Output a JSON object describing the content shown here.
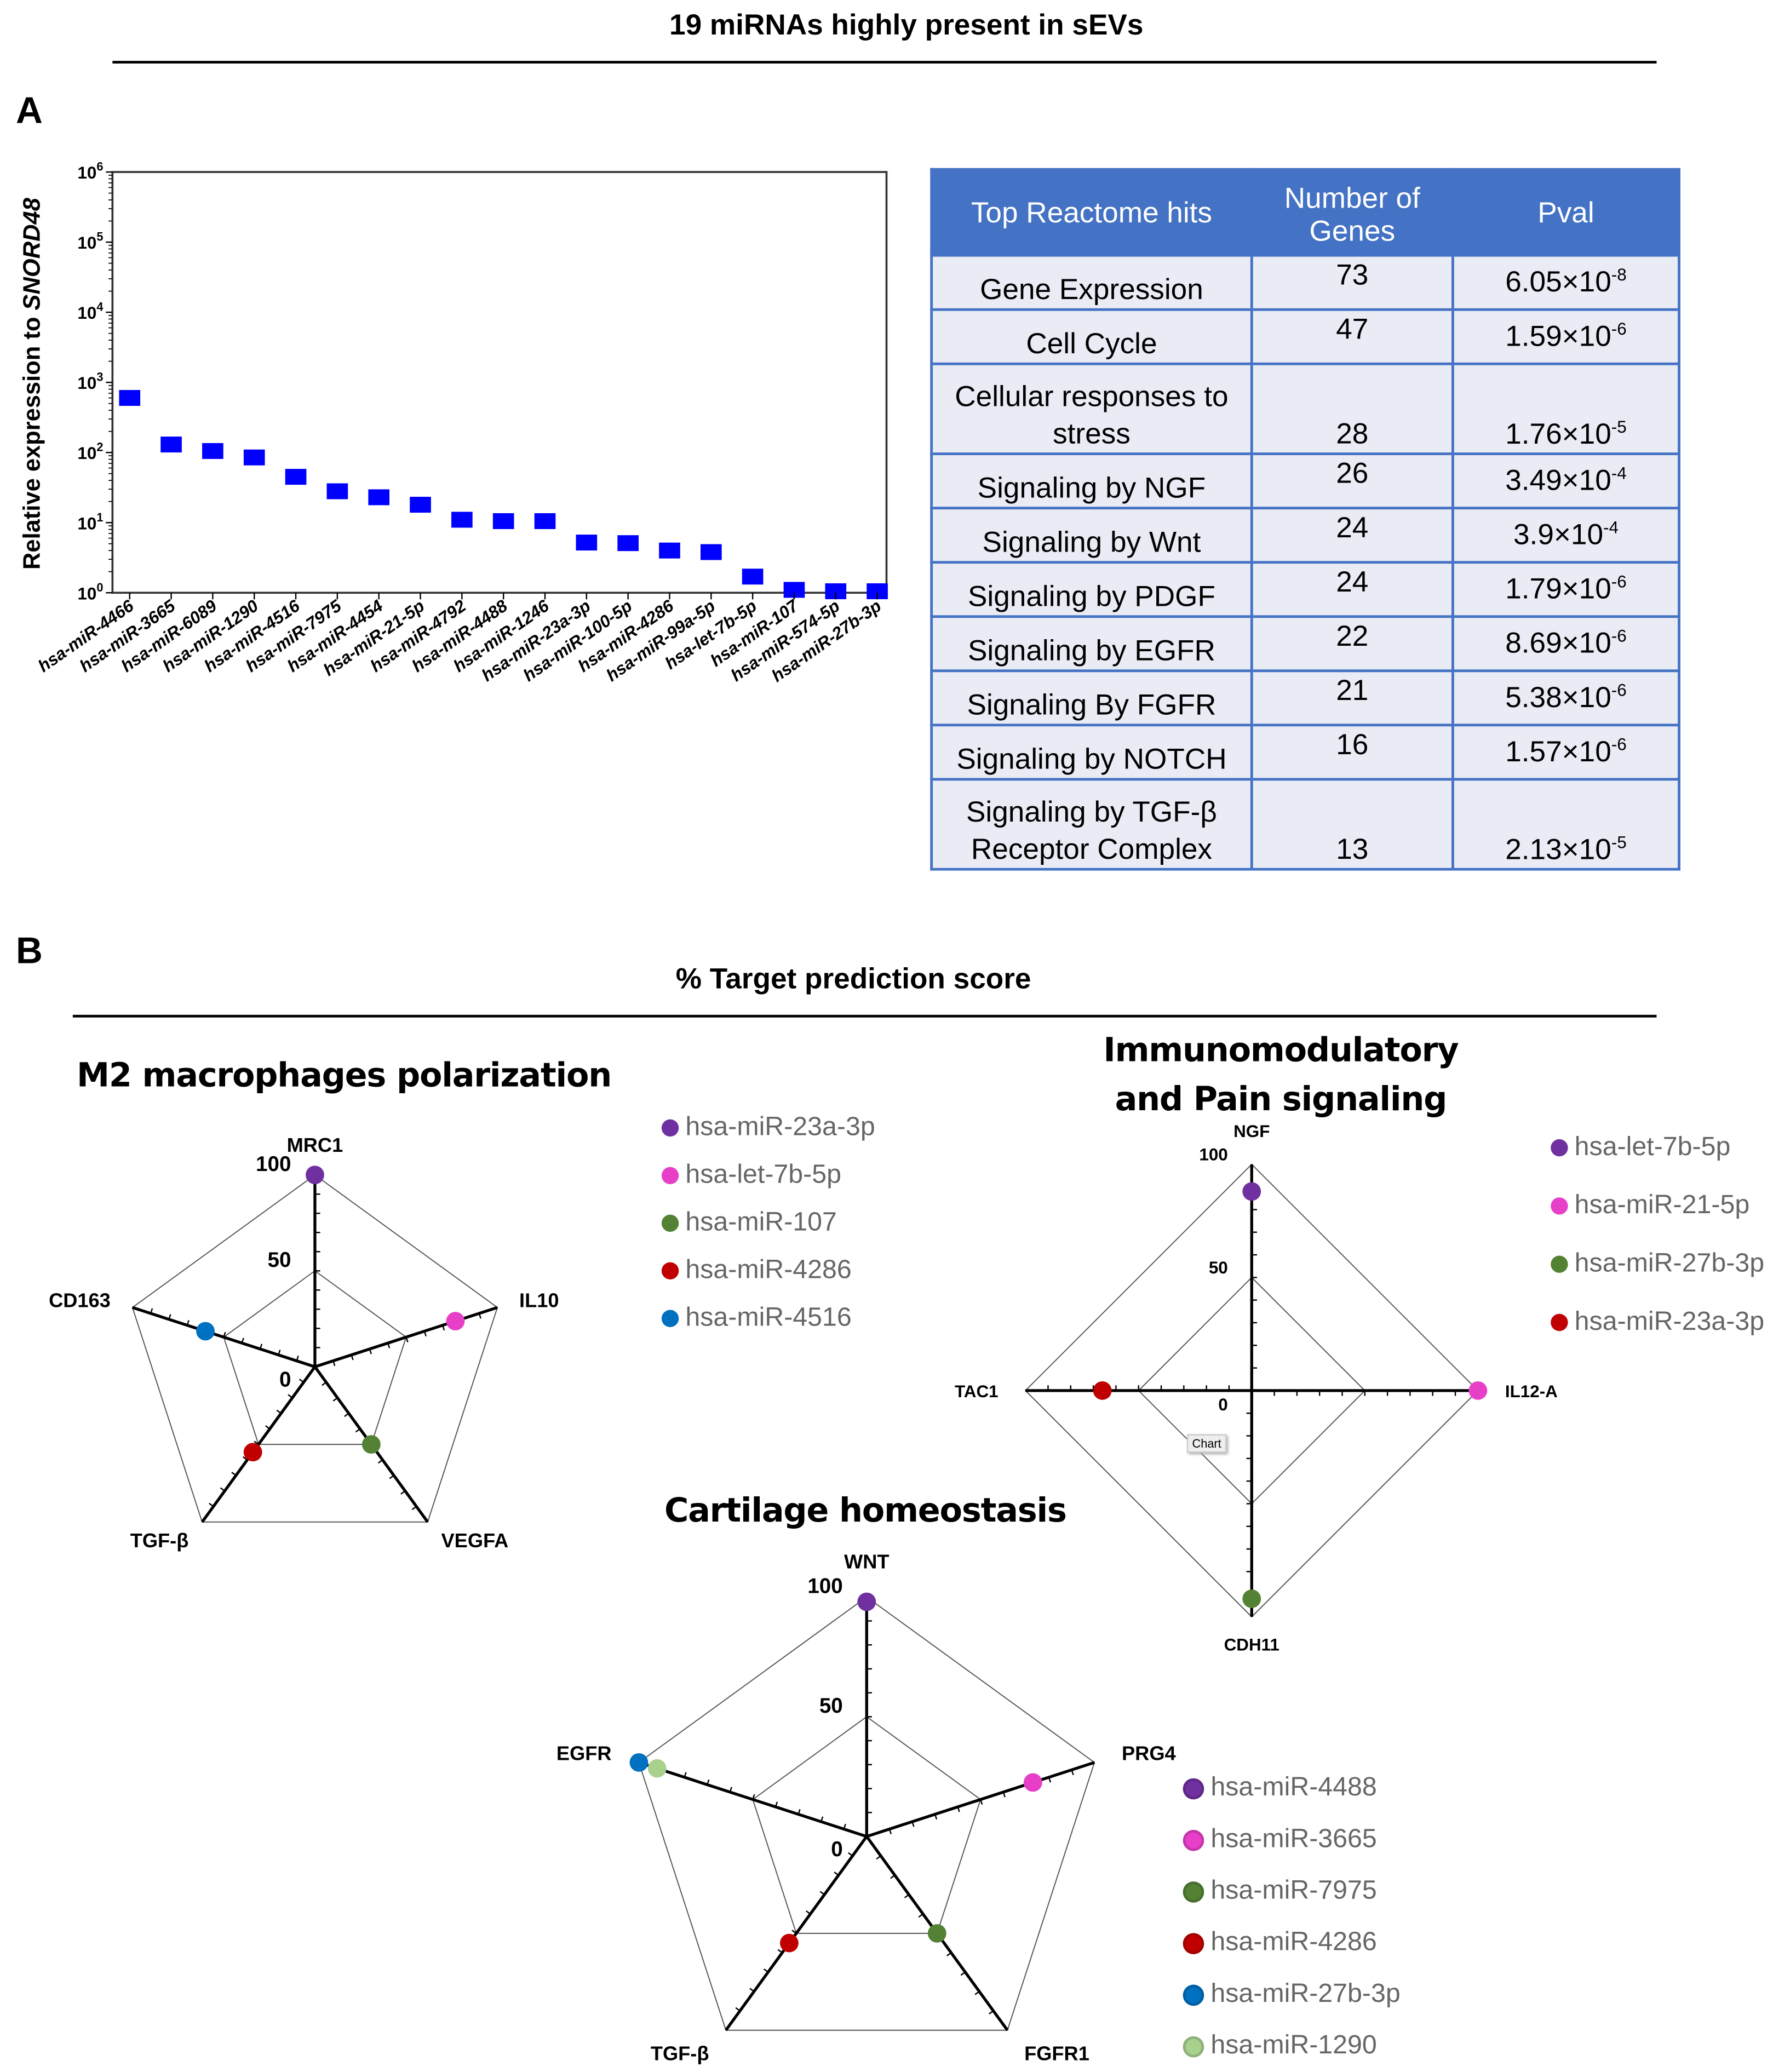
{
  "header": {
    "title": "19 miRNAs highly present in sEVs",
    "panel_a": "A",
    "panel_b": "B",
    "section_b_title": "% Target prediction score"
  },
  "chart_data": [
    {
      "type": "scatter",
      "title": "",
      "ylabel": "Relative expression to SNORD48",
      "yscale": "log",
      "ylim": [
        1,
        1000000
      ],
      "yticks": [
        "10^0",
        "10^1",
        "10^2",
        "10^3",
        "10^4",
        "10^5",
        "10^6"
      ],
      "categories": [
        "hsa-miR-4466",
        "hsa-miR-3665",
        "hsa-miR-6089",
        "hsa-miR-1290",
        "hsa-miR-4516",
        "hsa-miR-7975",
        "hsa-miR-4454",
        "hsa-miR-21-5p",
        "hsa-miR-4792",
        "hsa-miR-4488",
        "hsa-miR-1246",
        "hsa-miR-23a-3p",
        "hsa-miR-100-5p",
        "hsa-miR-4286",
        "hsa-miR-99a-5p",
        "hsa-let-7b-5p",
        "hsa-miR-107",
        "hsa-miR-574-5p",
        "hsa-miR-27b-3p"
      ],
      "values": [
        600,
        130,
        105,
        85,
        45,
        28,
        23,
        18,
        11,
        10.5,
        10.5,
        5.2,
        5.1,
        4,
        3.8,
        1.7,
        1.1,
        1.05,
        1.05
      ],
      "color": "#0000FF"
    },
    {
      "type": "table",
      "columns": [
        "Top Reactome hits",
        "Number  of Genes",
        "Pval"
      ],
      "rows": [
        {
          "name": "Gene Expression",
          "n": "73",
          "p": "6.05×10",
          "e": "-8"
        },
        {
          "name": "Cell Cycle",
          "n": "47",
          "p": "1.59×10",
          "e": "-6"
        },
        {
          "name": "Cellular responses to stress",
          "n": "28",
          "p": "1.76×10",
          "e": "-5"
        },
        {
          "name": "Signaling by NGF",
          "n": "26",
          "p": "3.49×10",
          "e": "-4"
        },
        {
          "name": "Signaling by Wnt",
          "n": "24",
          "p": "3.9×10",
          "e": "-4"
        },
        {
          "name": "Signaling by PDGF",
          "n": "24",
          "p": "1.79×10",
          "e": "-6"
        },
        {
          "name": "Signaling by EGFR",
          "n": "22",
          "p": "8.69×10",
          "e": "-6"
        },
        {
          "name": "Signaling By FGFR",
          "n": "21",
          "p": "5.38×10",
          "e": "-6"
        },
        {
          "name": "Signaling by NOTCH",
          "n": "16",
          "p": "1.57×10",
          "e": "-6"
        },
        {
          "name": "Signaling by TGF-β Receptor Complex",
          "n": "13",
          "p": "2.13×10",
          "e": "-5"
        }
      ]
    },
    {
      "type": "radar",
      "title": "M2 macrophages polarization",
      "rlim": [
        0,
        100
      ],
      "rticks": [
        "0",
        "50",
        "100"
      ],
      "axes": [
        "MRC1",
        "IL10",
        "VEGFA",
        "TGF-β",
        "CD163"
      ],
      "points": [
        {
          "axis": 0,
          "value": 100,
          "series": "hsa-miR-23a-3p",
          "color": "#7030A0"
        },
        {
          "axis": 1,
          "value": 77,
          "series": "hsa-let-7b-5p",
          "color": "#E83FC8"
        },
        {
          "axis": 2,
          "value": 50,
          "series": "hsa-miR-107",
          "color": "#548235"
        },
        {
          "axis": 3,
          "value": 55,
          "series": "hsa-miR-4286",
          "color": "#C00000"
        },
        {
          "axis": 4,
          "value": 60,
          "series": "hsa-miR-4516",
          "color": "#0070C0"
        }
      ]
    },
    {
      "type": "radar",
      "title_line1": "Immunomodulatory",
      "title_line2": "and Pain signaling",
      "rlim": [
        0,
        100
      ],
      "rticks": [
        "0",
        "50",
        "100"
      ],
      "axes": [
        "NGF",
        "IL12-A",
        "CDH11",
        "TAC1"
      ],
      "tooltip": "Chart",
      "points": [
        {
          "axis": 0,
          "value": 88,
          "series": "hsa-let-7b-5p",
          "color": "#7030A0"
        },
        {
          "axis": 1,
          "value": 100,
          "series": "hsa-miR-21-5p",
          "color": "#E83FC8"
        },
        {
          "axis": 2,
          "value": 92,
          "series": "hsa-miR-27b-3p",
          "color": "#548235"
        },
        {
          "axis": 3,
          "value": 66,
          "series": "hsa-miR-23a-3p",
          "color": "#C00000"
        }
      ]
    },
    {
      "type": "radar",
      "title": "Cartilage homeostasis",
      "rlim": [
        0,
        100
      ],
      "rticks": [
        "0",
        "50",
        "100"
      ],
      "axes": [
        "WNT",
        "PRG4",
        "FGFR1",
        "TGF-β",
        "EGFR"
      ],
      "points": [
        {
          "axis": 0,
          "value": 98,
          "series": "hsa-miR-4488",
          "color": "#7030A0"
        },
        {
          "axis": 1,
          "value": 73,
          "series": "hsa-miR-3665",
          "color": "#E83FC8"
        },
        {
          "axis": 2,
          "value": 50,
          "series": "hsa-miR-7975",
          "color": "#548235"
        },
        {
          "axis": 3,
          "value": 55,
          "series": "hsa-miR-4286",
          "color": "#C00000"
        },
        {
          "axis": 4,
          "value": 100,
          "series": "hsa-miR-27b-3p",
          "color": "#0070C0"
        },
        {
          "axis": 4,
          "value": 92,
          "series": "hsa-miR-1290",
          "color": "#A9D18E"
        }
      ]
    }
  ]
}
